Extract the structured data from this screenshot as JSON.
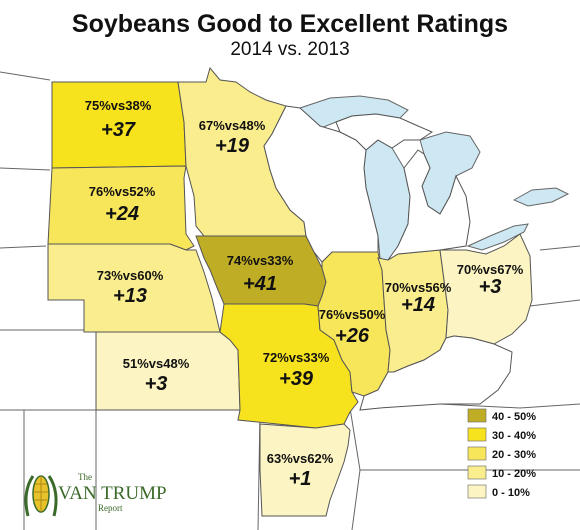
{
  "title": "Soybeans Good to Excellent Ratings",
  "subtitle": "2014 vs. 2013",
  "colors": {
    "water": "#cde8f2",
    "land": "#ffffff",
    "b40_50": "#bfad25",
    "b30_40": "#f7e21e",
    "b20_30": "#f7e55a",
    "b10_20": "#faed8e",
    "b0_10": "#fcf4c2"
  },
  "states": {
    "nd": {
      "vs": "75%vs38%",
      "change": "+37"
    },
    "mn": {
      "vs": "67%vs48%",
      "change": "+19"
    },
    "sd": {
      "vs": "76%vs52%",
      "change": "+24"
    },
    "ia": {
      "vs": "74%vs33%",
      "change": "+41"
    },
    "ne": {
      "vs": "73%vs60%",
      "change": "+13"
    },
    "il": {
      "vs": "76%vs50%",
      "change": "+26"
    },
    "in": {
      "vs": "70%vs56%",
      "change": "+14"
    },
    "oh": {
      "vs": "70%vs67%",
      "change": "+3"
    },
    "ks": {
      "vs": "51%vs48%",
      "change": "+3"
    },
    "mo": {
      "vs": "72%vs33%",
      "change": "+39"
    },
    "ar": {
      "vs": "63%vs62%",
      "change": "+1"
    }
  },
  "legend": [
    {
      "label": "40 - 50%",
      "color": "#bfad25"
    },
    {
      "label": "30 - 40%",
      "color": "#f7e21e"
    },
    {
      "label": "20 - 30%",
      "color": "#f7e55a"
    },
    {
      "label": "10 - 20%",
      "color": "#faed8e"
    },
    {
      "label": "0 - 10%",
      "color": "#fcf4c2"
    }
  ],
  "logo": {
    "the": "The",
    "name": "VAN TRUMP",
    "report": "Report"
  }
}
